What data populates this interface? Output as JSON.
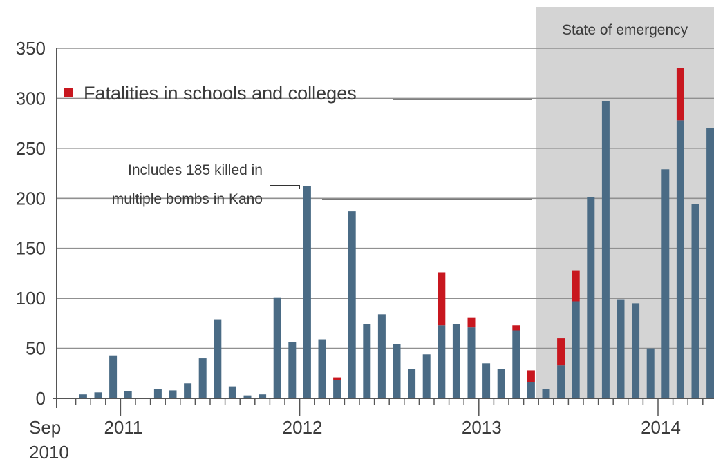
{
  "chart_data": {
    "type": "bar",
    "stacked": true,
    "x_start": "Sep 2010",
    "x_end": "May 2014",
    "ylim": [
      0,
      350
    ],
    "yticks": [
      0,
      50,
      100,
      150,
      200,
      250,
      300,
      350
    ],
    "y_tick_labels": [
      "0",
      "50",
      "100",
      "150",
      "200",
      "250",
      "300",
      "350"
    ],
    "x_tick_labels": [
      {
        "text": "Sep",
        "text2": "2010",
        "month_index": 0
      },
      {
        "text": "2011",
        "month_index": 4
      },
      {
        "text": "2012",
        "month_index": 16
      },
      {
        "text": "2013",
        "month_index": 28
      },
      {
        "text": "2014",
        "month_index": 40
      }
    ],
    "gridlines": true,
    "categories": [
      "Sep 2010",
      "Oct 2010",
      "Nov 2010",
      "Dec 2010",
      "Jan 2011",
      "Feb 2011",
      "Mar 2011",
      "Apr 2011",
      "May 2011",
      "Jun 2011",
      "Jul 2011",
      "Aug 2011",
      "Sep 2011",
      "Oct 2011",
      "Nov 2011",
      "Dec 2011",
      "Jan 2012",
      "Feb 2012",
      "Mar 2012",
      "Apr 2012",
      "May 2012",
      "Jun 2012",
      "Jul 2012",
      "Aug 2012",
      "Sep 2012",
      "Oct 2012",
      "Nov 2012",
      "Dec 2012",
      "Jan 2013",
      "Feb 2013",
      "Mar 2013",
      "Apr 2013",
      "May 2013",
      "Jun 2013",
      "Jul 2013",
      "Aug 2013",
      "Sep 2013",
      "Oct 2013",
      "Nov 2013",
      "Dec 2013",
      "Jan 2014",
      "Feb 2014",
      "Mar 2014",
      "Apr 2014",
      "May 2014"
    ],
    "series": [
      {
        "color": "#4a6b85",
        "values": [
          0,
          4,
          6,
          43,
          7,
          0,
          9,
          8,
          15,
          40,
          79,
          12,
          3,
          4,
          101,
          56,
          212,
          59,
          18,
          187,
          74,
          84,
          54,
          29,
          44,
          73,
          74,
          71,
          35,
          29,
          68,
          16,
          9,
          33,
          97,
          201,
          297,
          99,
          95,
          50,
          229,
          278,
          194,
          270,
          0
        ]
      },
      {
        "name": "Fatalities in schools and colleges",
        "color": "#c8171f",
        "values": [
          0,
          0,
          0,
          0,
          0,
          0,
          0,
          0,
          0,
          0,
          0,
          0,
          0,
          0,
          0,
          0,
          0,
          0,
          3,
          0,
          0,
          0,
          0,
          0,
          0,
          53,
          0,
          10,
          0,
          0,
          5,
          12,
          0,
          27,
          31,
          0,
          0,
          0,
          0,
          0,
          0,
          52,
          0,
          0,
          0
        ]
      }
    ],
    "shaded_region": {
      "label": "State of emergency",
      "start_month_index": 32,
      "end_month_index": 45,
      "color": "#d4d4d4"
    },
    "legend": {
      "label": "Fatalities in schools and colleges",
      "color": "#c8171f",
      "placement": "top-left"
    },
    "annotations": [
      {
        "lines": [
          "Includes 185 killed in",
          "multiple bombs in Kano"
        ],
        "points_to": "Jan 2012"
      }
    ],
    "axis_color": "#555555",
    "grid_color": "#909090"
  }
}
